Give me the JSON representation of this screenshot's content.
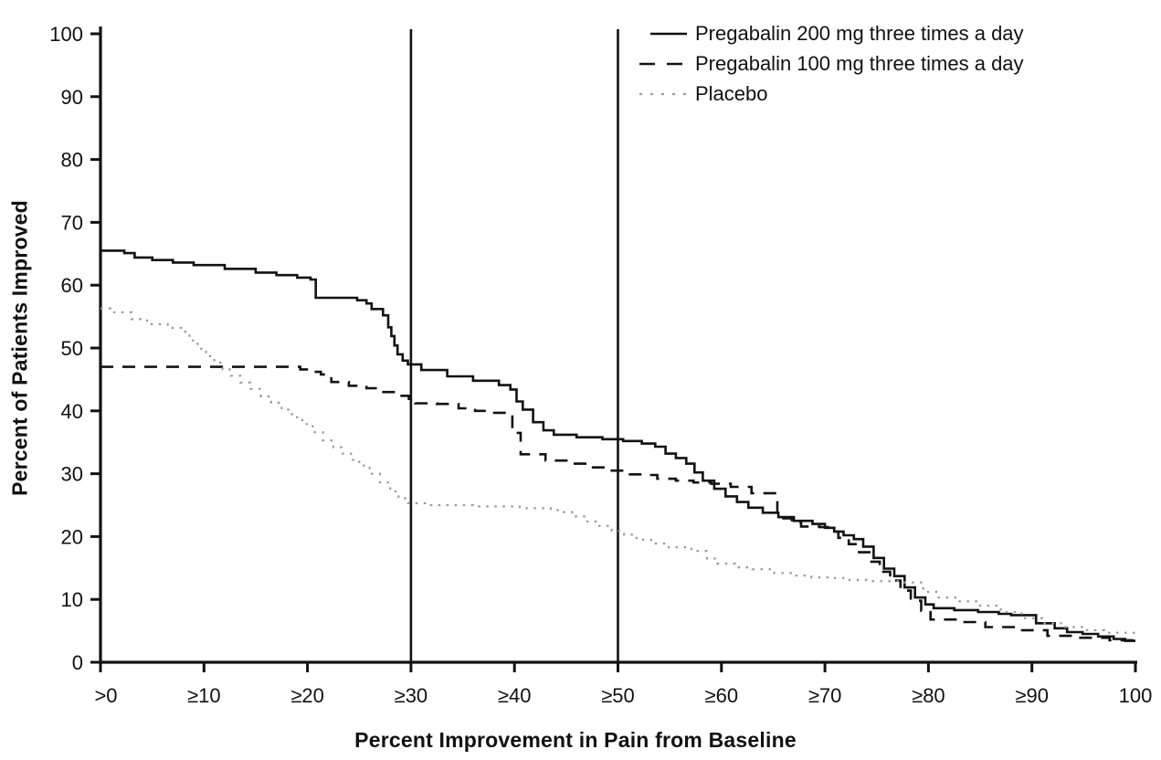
{
  "chart_data": {
    "type": "line",
    "subtype": "step-after-responder-curves",
    "title": "",
    "xlabel": "Percent Improvement in Pain from Baseline",
    "ylabel": "Percent of Patients Improved",
    "xlim": [
      0,
      100
    ],
    "ylim": [
      0,
      100
    ],
    "grid": false,
    "x_tick_values": [
      0,
      10,
      20,
      30,
      40,
      50,
      60,
      70,
      80,
      90,
      100
    ],
    "x_tick_labels": [
      ">0",
      "≥10",
      "≥20",
      "≥30",
      "≥40",
      "≥50",
      "≥60",
      "≥70",
      "≥80",
      "≥90",
      "100"
    ],
    "y_tick_values": [
      0,
      10,
      20,
      30,
      40,
      50,
      60,
      70,
      80,
      90,
      100
    ],
    "y_tick_labels": [
      "0",
      "10",
      "20",
      "30",
      "40",
      "50",
      "60",
      "70",
      "80",
      "90",
      "100"
    ],
    "reference_lines_x": [
      30,
      50
    ],
    "legend_position": "top-right",
    "line_color": "#121212",
    "placebo_color": "#9a9a9a",
    "series": [
      {
        "name": "Pregabalin 200 mg three times a day",
        "style": "solid",
        "color": "#121212",
        "points": [
          [
            0,
            65.5
          ],
          [
            2.3,
            65.1
          ],
          [
            3.3,
            64.4
          ],
          [
            5,
            64
          ],
          [
            7,
            63.6
          ],
          [
            9,
            63.2
          ],
          [
            12,
            62.6
          ],
          [
            15,
            62
          ],
          [
            17,
            61.6
          ],
          [
            19,
            61.2
          ],
          [
            20.3,
            60.9
          ],
          [
            20.8,
            58
          ],
          [
            24.8,
            57.6
          ],
          [
            25.7,
            57.1
          ],
          [
            26.2,
            56.2
          ],
          [
            27.3,
            55.2
          ],
          [
            27.8,
            53.3
          ],
          [
            28.1,
            51.9
          ],
          [
            28.4,
            50.4
          ],
          [
            28.7,
            49
          ],
          [
            29.2,
            48
          ],
          [
            29.7,
            47.4
          ],
          [
            31,
            46.5
          ],
          [
            33.5,
            45.5
          ],
          [
            36,
            44.8
          ],
          [
            38.5,
            44.1
          ],
          [
            39.6,
            43.4
          ],
          [
            40.2,
            41.5
          ],
          [
            40.8,
            40.2
          ],
          [
            41.8,
            38.2
          ],
          [
            42.8,
            36.9
          ],
          [
            43.8,
            36.2
          ],
          [
            46,
            35.8
          ],
          [
            48.5,
            35.5
          ],
          [
            50.5,
            35.2
          ],
          [
            52.3,
            34.8
          ],
          [
            53.6,
            34.3
          ],
          [
            54.6,
            33.2
          ],
          [
            55.6,
            32.5
          ],
          [
            56.6,
            31.6
          ],
          [
            57.4,
            30.2
          ],
          [
            58.2,
            28.9
          ],
          [
            59.3,
            27.6
          ],
          [
            60.4,
            26.4
          ],
          [
            61.5,
            25.5
          ],
          [
            62.6,
            24.6
          ],
          [
            64,
            23.8
          ],
          [
            65.5,
            23.1
          ],
          [
            67,
            22.5
          ],
          [
            68.8,
            22
          ],
          [
            70,
            21.4
          ],
          [
            70.9,
            20.8
          ],
          [
            71.8,
            20.2
          ],
          [
            72.8,
            19.6
          ],
          [
            73.7,
            18.4
          ],
          [
            74.7,
            16.6
          ],
          [
            75.7,
            14.9
          ],
          [
            76.7,
            13.7
          ],
          [
            77.7,
            11.9
          ],
          [
            78.7,
            10.3
          ],
          [
            79.7,
            9.2
          ],
          [
            80.5,
            8.6
          ],
          [
            82.5,
            8.3
          ],
          [
            84.8,
            8
          ],
          [
            86.8,
            7.7
          ],
          [
            88,
            7.5
          ],
          [
            90.4,
            6.2
          ],
          [
            92.2,
            5.4
          ],
          [
            93.4,
            4.8
          ],
          [
            94.9,
            4.5
          ],
          [
            96.4,
            4.1
          ],
          [
            97.9,
            3.7
          ],
          [
            99,
            3.4
          ],
          [
            100,
            3.4
          ]
        ]
      },
      {
        "name": "Pregabalin 100 mg three times a day",
        "style": "dashed",
        "color": "#121212",
        "points": [
          [
            0,
            47
          ],
          [
            18.3,
            47
          ],
          [
            19.3,
            46.6
          ],
          [
            20.3,
            46.2
          ],
          [
            21.3,
            45.8
          ],
          [
            22.3,
            44.6
          ],
          [
            24,
            44
          ],
          [
            25.7,
            43.6
          ],
          [
            27.2,
            43
          ],
          [
            28.8,
            42.4
          ],
          [
            29.8,
            41.9
          ],
          [
            30.4,
            41.2
          ],
          [
            32.5,
            41.1
          ],
          [
            34.6,
            40.4
          ],
          [
            36.2,
            40
          ],
          [
            37.8,
            39.7
          ],
          [
            39.2,
            39.4
          ],
          [
            39.8,
            36.5
          ],
          [
            40.6,
            33.1
          ],
          [
            43,
            32.1
          ],
          [
            45.6,
            31.6
          ],
          [
            47.4,
            31
          ],
          [
            49.2,
            30.5
          ],
          [
            50.9,
            29.9
          ],
          [
            52.7,
            29.8
          ],
          [
            53.8,
            29.2
          ],
          [
            55.6,
            28.9
          ],
          [
            57.3,
            28.6
          ],
          [
            59,
            28.4
          ],
          [
            60.9,
            27.9
          ],
          [
            62.9,
            26.9
          ],
          [
            65.1,
            26.9
          ],
          [
            65.4,
            22.9
          ],
          [
            66.8,
            22.2
          ],
          [
            67.7,
            21.6
          ],
          [
            69.5,
            21.5
          ],
          [
            70.3,
            20.8
          ],
          [
            71.3,
            19.8
          ],
          [
            72.3,
            18.8
          ],
          [
            73.3,
            17.5
          ],
          [
            74.3,
            16
          ],
          [
            75.3,
            14.4
          ],
          [
            76.3,
            13
          ],
          [
            77.3,
            11.4
          ],
          [
            78.3,
            9.8
          ],
          [
            79.3,
            8.2
          ],
          [
            80.2,
            6.8
          ],
          [
            83,
            6.4
          ],
          [
            85.5,
            5.6
          ],
          [
            88.5,
            5.1
          ],
          [
            91.5,
            4.2
          ],
          [
            94.5,
            3.9
          ],
          [
            97.5,
            3.5
          ],
          [
            100,
            3.4
          ]
        ]
      },
      {
        "name": "Placebo",
        "style": "dotted",
        "color": "#9a9a9a",
        "points": [
          [
            0,
            56.3
          ],
          [
            1,
            55.7
          ],
          [
            3,
            54.6
          ],
          [
            4.5,
            53.8
          ],
          [
            6.5,
            53.2
          ],
          [
            7.8,
            52.6
          ],
          [
            8.6,
            51.2
          ],
          [
            9.4,
            49.9
          ],
          [
            10.2,
            48.7
          ],
          [
            11,
            47.7
          ],
          [
            11.8,
            46.6
          ],
          [
            12.6,
            45.6
          ],
          [
            13.5,
            44.5
          ],
          [
            14.5,
            43.5
          ],
          [
            15.5,
            42.3
          ],
          [
            16.5,
            41.3
          ],
          [
            17.5,
            40.2
          ],
          [
            18.5,
            39
          ],
          [
            19.5,
            37.9
          ],
          [
            20.5,
            36.6
          ],
          [
            21.5,
            35.3
          ],
          [
            22.5,
            34.2
          ],
          [
            23.3,
            33.2
          ],
          [
            24.2,
            32.2
          ],
          [
            25,
            31.3
          ],
          [
            26,
            30
          ],
          [
            27,
            28.6
          ],
          [
            28,
            27.2
          ],
          [
            28.8,
            26.1
          ],
          [
            29.6,
            25.3
          ],
          [
            31.5,
            25
          ],
          [
            36,
            24.8
          ],
          [
            40.5,
            24.5
          ],
          [
            43.5,
            24.2
          ],
          [
            44.5,
            23.9
          ],
          [
            45.7,
            23.2
          ],
          [
            46.9,
            22.4
          ],
          [
            48.1,
            21.7
          ],
          [
            49.4,
            20.9
          ],
          [
            50.6,
            20.3
          ],
          [
            51.8,
            19.5
          ],
          [
            53.2,
            18.9
          ],
          [
            54.9,
            18.3
          ],
          [
            57.1,
            17.7
          ],
          [
            58.6,
            16.5
          ],
          [
            59.6,
            15.7
          ],
          [
            61.3,
            15.1
          ],
          [
            63,
            14.8
          ],
          [
            64.8,
            14.2
          ],
          [
            66.9,
            13.8
          ],
          [
            68.7,
            13.5
          ],
          [
            70.4,
            13.4
          ],
          [
            72.2,
            13.1
          ],
          [
            74,
            12.9
          ],
          [
            77.5,
            12.7
          ],
          [
            79.5,
            11.2
          ],
          [
            81,
            10.3
          ],
          [
            83,
            9.7
          ],
          [
            85,
            9
          ],
          [
            87,
            8
          ],
          [
            89,
            7
          ],
          [
            91,
            6.2
          ],
          [
            93,
            5.6
          ],
          [
            95,
            5.1
          ],
          [
            97,
            4.7
          ],
          [
            100,
            4.3
          ]
        ]
      }
    ]
  }
}
